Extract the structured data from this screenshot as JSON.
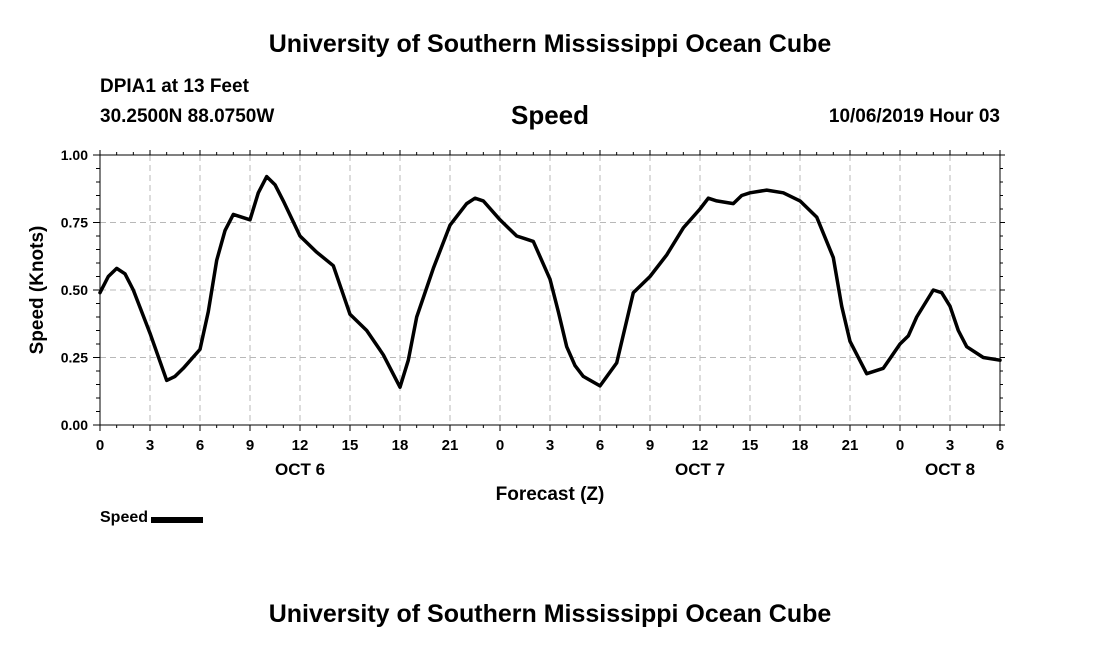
{
  "header": {
    "title": "University of Southern Mississippi Ocean Cube",
    "station": "DPIA1 at 13 Feet",
    "coords": "30.2500N 88.0750W",
    "chart_title": "Speed",
    "datetime": "10/06/2019 Hour 03"
  },
  "footer": {
    "title": "University of Southern Mississippi Ocean Cube"
  },
  "legend": {
    "label": "Speed"
  },
  "chart_data": {
    "type": "line",
    "title": "Speed",
    "xlabel": "Forecast (Z)",
    "ylabel": "Speed (Knots)",
    "ylim": [
      0,
      1
    ],
    "xlim": [
      0,
      54
    ],
    "x_unit": "forecast hours from Oct 6 00Z",
    "grid": true,
    "line_color": "#000000",
    "y_ticks": [
      "0.00",
      "0.25",
      "0.50",
      "0.75",
      "1.00"
    ],
    "x_ticks": [
      "0",
      "3",
      "6",
      "9",
      "12",
      "15",
      "18",
      "21",
      "0",
      "3",
      "6",
      "9",
      "12",
      "15",
      "18",
      "21",
      "0",
      "3",
      "6"
    ],
    "day_labels": [
      {
        "x": 12,
        "label": "OCT 6"
      },
      {
        "x": 36,
        "label": "OCT 7"
      },
      {
        "x": 51,
        "label": "OCT 8"
      }
    ],
    "series": [
      {
        "name": "Speed",
        "x": [
          0,
          0.5,
          1,
          1.5,
          2,
          3,
          4,
          4.5,
          5,
          6,
          6.5,
          7,
          7.5,
          8,
          9,
          9.5,
          10,
          10.5,
          11,
          12,
          13,
          14,
          15,
          16,
          17,
          18,
          18.5,
          19,
          20,
          21,
          22,
          22.5,
          23,
          24,
          25,
          25.5,
          26,
          27,
          27.5,
          28,
          28.5,
          29,
          30,
          31,
          32,
          33,
          34,
          35,
          36,
          36.5,
          37,
          38,
          38.5,
          39,
          40,
          41,
          42,
          43,
          44,
          44.5,
          45,
          46,
          47,
          48,
          48.5,
          49,
          50,
          50.5,
          51,
          51.5,
          52,
          53,
          54
        ],
        "y": [
          0.49,
          0.55,
          0.58,
          0.56,
          0.5,
          0.34,
          0.165,
          0.18,
          0.21,
          0.28,
          0.42,
          0.61,
          0.72,
          0.78,
          0.76,
          0.86,
          0.92,
          0.89,
          0.83,
          0.7,
          0.64,
          0.59,
          0.41,
          0.35,
          0.26,
          0.14,
          0.24,
          0.4,
          0.58,
          0.74,
          0.82,
          0.84,
          0.83,
          0.76,
          0.7,
          0.69,
          0.68,
          0.54,
          0.42,
          0.29,
          0.22,
          0.18,
          0.145,
          0.23,
          0.49,
          0.55,
          0.63,
          0.73,
          0.8,
          0.84,
          0.83,
          0.82,
          0.85,
          0.86,
          0.87,
          0.86,
          0.83,
          0.77,
          0.62,
          0.44,
          0.31,
          0.19,
          0.21,
          0.3,
          0.33,
          0.4,
          0.5,
          0.49,
          0.44,
          0.35,
          0.29,
          0.25,
          0.24
        ]
      }
    ]
  }
}
